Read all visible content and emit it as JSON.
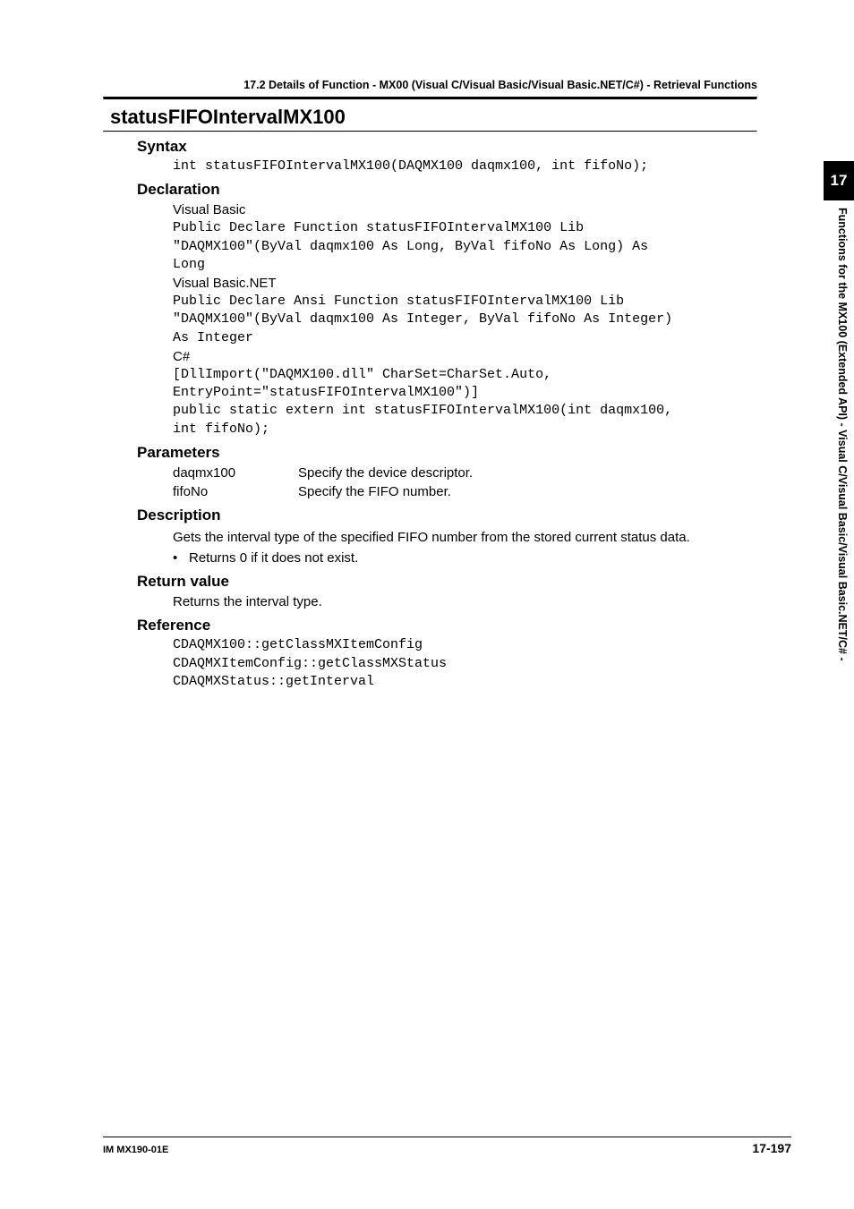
{
  "running_head": "17.2  Details of  Function - MX00 (Visual C/Visual Basic/Visual Basic.NET/C#) - Retrieval Functions",
  "func_name": "statusFIFOIntervalMX100",
  "sections": {
    "syntax": {
      "title": "Syntax",
      "code": "int statusFIFOIntervalMX100(DAQMX100 daqmx100, int fifoNo);"
    },
    "declaration": {
      "title": "Declaration",
      "vb_label": "Visual Basic",
      "vb_code": "Public Declare Function statusFIFOIntervalMX100 Lib\n\"DAQMX100\"(ByVal daqmx100 As Long, ByVal fifoNo As Long) As\nLong",
      "vbnet_label": "Visual Basic.NET",
      "vbnet_code": "Public Declare Ansi Function statusFIFOIntervalMX100 Lib\n\"DAQMX100\"(ByVal daqmx100 As Integer, ByVal fifoNo As Integer)\nAs Integer",
      "cs_label": "C#",
      "cs_code": "[DllImport(\"DAQMX100.dll\" CharSet=CharSet.Auto,\nEntryPoint=\"statusFIFOIntervalMX100\")]\npublic static extern int statusFIFOIntervalMX100(int daqmx100,\nint fifoNo);"
    },
    "parameters": {
      "title": "Parameters",
      "rows": [
        {
          "name": "daqmx100",
          "desc": "Specify the device descriptor."
        },
        {
          "name": "fifoNo",
          "desc": "Specify the FIFO number."
        }
      ]
    },
    "description": {
      "title": "Description",
      "para": "Gets the interval type of the specified FIFO number from the stored current status data.",
      "bullet": "Returns 0 if it does not exist."
    },
    "return_value": {
      "title": "Return value",
      "text": "Returns the interval type."
    },
    "reference": {
      "title": "Reference",
      "code": "CDAQMX100::getClassMXItemConfig\nCDAQMXItemConfig::getClassMXStatus\nCDAQMXStatus::getInterval"
    }
  },
  "side_tab": "17",
  "side_text": "Functions for the MX100 (Extended API) - Visual C/Visual Basic/Visual Basic.NET/C# -",
  "footer": {
    "left": "IM MX190-01E",
    "right": "17-197"
  }
}
